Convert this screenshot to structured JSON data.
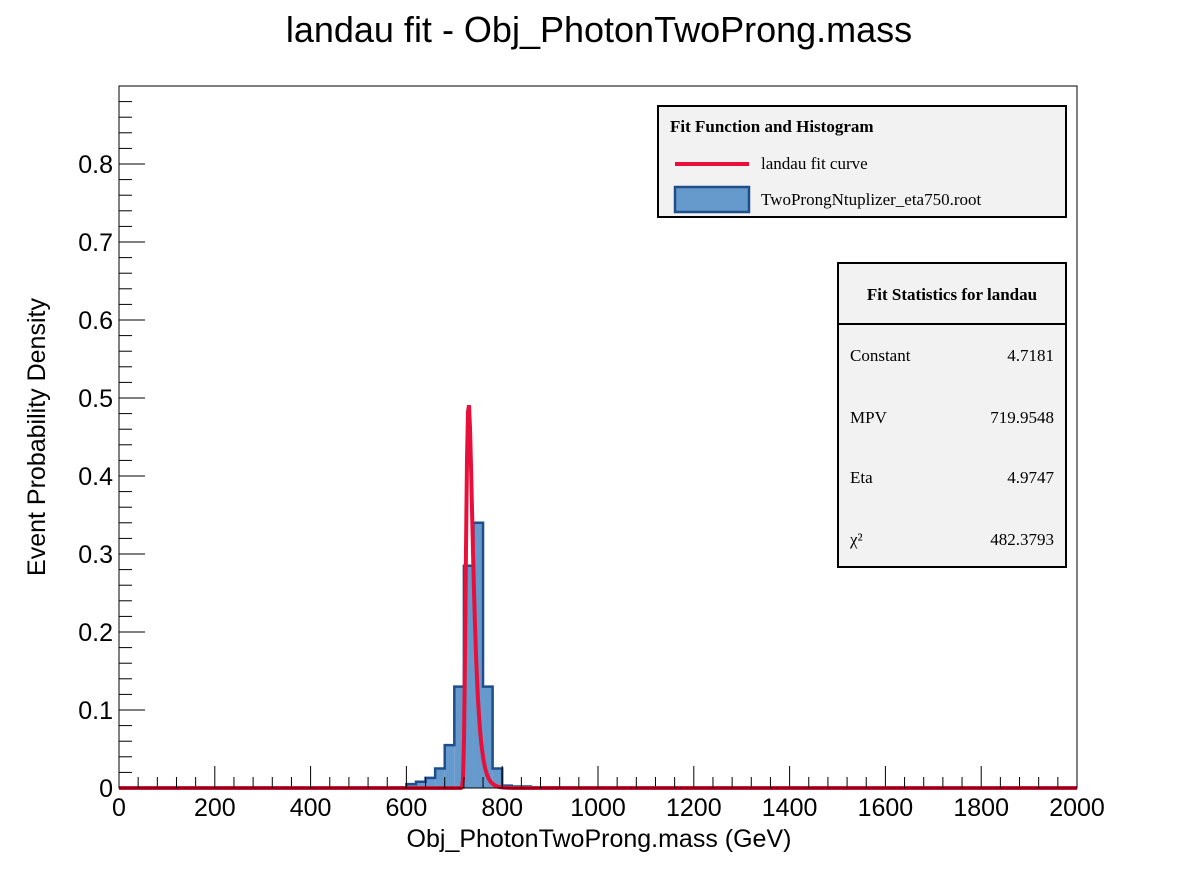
{
  "chart_data": {
    "type": "bar",
    "title": "landau fit - Obj_PhotonTwoProng.mass",
    "xlabel": "Obj_PhotonTwoProng.mass (GeV)",
    "ylabel": "Event Probability Density",
    "xlim": [
      0,
      2000
    ],
    "ylim": [
      0,
      0.9
    ],
    "x_ticks": [
      0,
      200,
      400,
      600,
      800,
      1000,
      1200,
      1400,
      1600,
      1800,
      2000
    ],
    "y_ticks": [
      0,
      0.1,
      0.2,
      0.3,
      0.4,
      0.5,
      0.6,
      0.7,
      0.8
    ],
    "y_tick_labels": [
      "0",
      "0.1",
      "0.2",
      "0.3",
      "0.4",
      "0.5",
      "0.6",
      "0.7",
      "0.8"
    ],
    "bin_width": 20,
    "series": [
      {
        "name": "TwoProngNtuplizer_eta750.root",
        "bins": [
          {
            "x": 600,
            "value": 0.005
          },
          {
            "x": 620,
            "value": 0.008
          },
          {
            "x": 640,
            "value": 0.013
          },
          {
            "x": 660,
            "value": 0.025
          },
          {
            "x": 680,
            "value": 0.055
          },
          {
            "x": 700,
            "value": 0.13
          },
          {
            "x": 720,
            "value": 0.285
          },
          {
            "x": 740,
            "value": 0.34
          },
          {
            "x": 760,
            "value": 0.13
          },
          {
            "x": 780,
            "value": 0.025
          },
          {
            "x": 800,
            "value": 0.003
          },
          {
            "x": 820,
            "value": 0.002
          },
          {
            "x": 840,
            "value": 0.002
          },
          {
            "x": 860,
            "value": 0.001
          },
          {
            "x": 880,
            "value": 0.001
          }
        ],
        "color": "#6699cc",
        "edge_color": "#1f4e8c"
      },
      {
        "name": "landau fit curve",
        "type": "line",
        "color": "#e8103a",
        "function": "landau",
        "constant": 4.7181,
        "mpv": 719.9548,
        "eta": 4.9747,
        "peak_x": 730,
        "peak_y": 0.493
      }
    ],
    "legend_position": "top-right",
    "grid": false
  },
  "legend": {
    "title": "Fit Function and Histogram",
    "entries": [
      "landau fit curve",
      "TwoProngNtuplizer_eta750.root"
    ]
  },
  "stats": {
    "title": "Fit Statistics for landau",
    "rows": [
      {
        "name": "Constant",
        "value": "4.7181"
      },
      {
        "name": "MPV",
        "value": "719.9548"
      },
      {
        "name": "Eta",
        "value": "4.9747"
      },
      {
        "name": "χ²",
        "value": "482.3793"
      }
    ]
  },
  "colors": {
    "hist_fill": "#6699cc",
    "hist_edge": "#1f4e8c",
    "fit_line": "#e8103a",
    "box_bg": "#f2f2f2"
  }
}
